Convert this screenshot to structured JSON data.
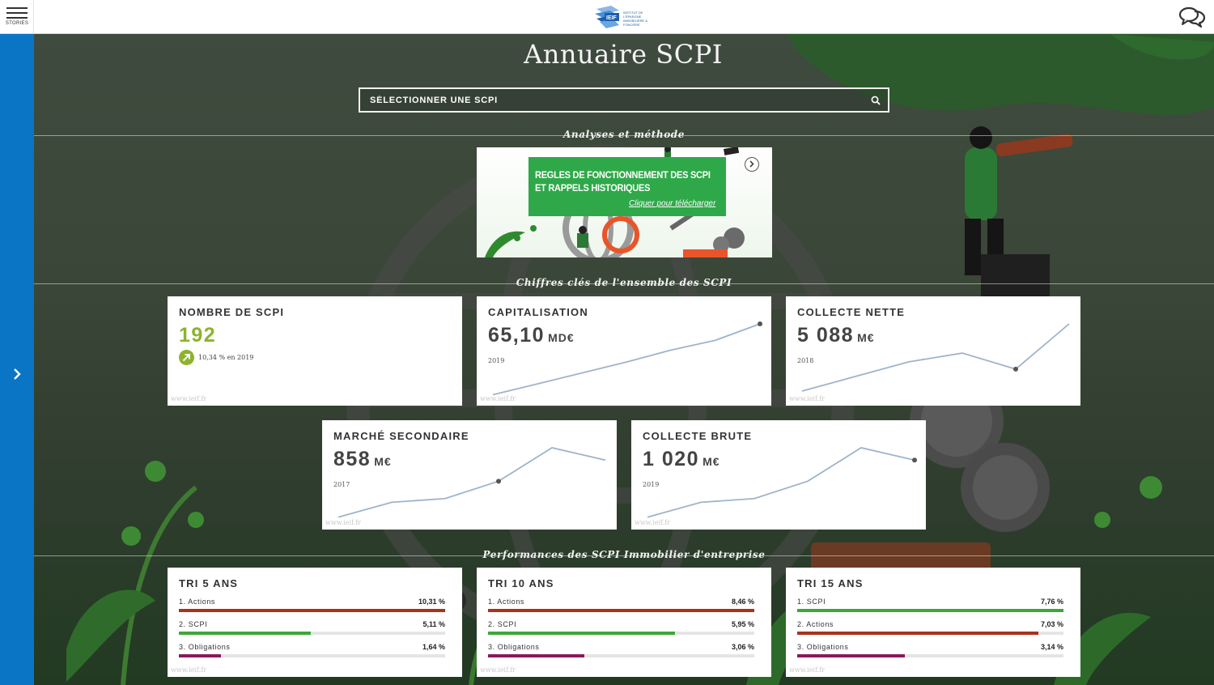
{
  "topbar": {
    "menu_label": "STORIES",
    "logo_text": "IEIF",
    "logo_subtext": "INSTITUT DE L'ÉPARGNE IMMOBILIÈRE & FONCIÈRE"
  },
  "page": {
    "title": "Annuaire SCPI"
  },
  "search": {
    "placeholder": "SÉLECTIONNER UNE SCPI"
  },
  "sections": {
    "analyses": "Analyses et méthode",
    "chiffres": "Chiffres clés de l'ensemble des SCPI",
    "performances": "Performances des SCPI Immobilier d'entreprise"
  },
  "banner": {
    "line1": "REGLES DE FONCTIONNEMENT DES SCPI",
    "line2": "ET RAPPELS HISTORIQUES",
    "cta": "Cliquer pour télécharger"
  },
  "source_label": "www.ieif.fr",
  "kpis": {
    "nombre": {
      "title": "NOMBRE DE SCPI",
      "value": "192",
      "trend_text": "10,34 % en 2019"
    },
    "capitalisation": {
      "title": "CAPITALISATION",
      "value": "65,10",
      "unit": "MD€",
      "year": "2019",
      "series": [
        1,
        2,
        3,
        4,
        5.1,
        6,
        7.5
      ]
    },
    "collecte_nette": {
      "title": "COLLECTE NETTE",
      "value": "5 088",
      "unit": "M€",
      "year": "2018",
      "series": [
        1,
        2,
        3,
        3.6,
        2.5,
        5.6
      ]
    },
    "marche_secondaire": {
      "title": "MARCHÉ SECONDAIRE",
      "value": "858",
      "unit": "M€",
      "year": "2017",
      "series": [
        1,
        2.2,
        2.5,
        3.9,
        6.6,
        5.6
      ]
    },
    "collecte_brute": {
      "title": "COLLECTE BRUTE",
      "value": "1 020",
      "unit": "M€",
      "year": "2019",
      "series": [
        1,
        2.2,
        2.5,
        3.9,
        6.6,
        5.6
      ]
    }
  },
  "tri": [
    {
      "title": "TRI 5 ANS",
      "rows": [
        {
          "label": "1. Actions",
          "value": "10,31 %",
          "pct": 10.31,
          "color": "#a9321c"
        },
        {
          "label": "2. SCPI",
          "value": "5,11 %",
          "pct": 5.11,
          "color": "#3ca83a"
        },
        {
          "label": "3. Obligations",
          "value": "1,64 %",
          "pct": 1.64,
          "color": "#8a1a5c"
        }
      ],
      "max": 10.31
    },
    {
      "title": "TRI 10 ANS",
      "rows": [
        {
          "label": "1. Actions",
          "value": "8,46 %",
          "pct": 8.46,
          "color": "#a9321c"
        },
        {
          "label": "2. SCPI",
          "value": "5,95 %",
          "pct": 5.95,
          "color": "#3ca83a"
        },
        {
          "label": "3. Obligations",
          "value": "3,06 %",
          "pct": 3.06,
          "color": "#8a1a5c"
        }
      ],
      "max": 8.46
    },
    {
      "title": "TRI 15 ANS",
      "rows": [
        {
          "label": "1. SCPI",
          "value": "7,76 %",
          "pct": 7.76,
          "color": "#3ca83a"
        },
        {
          "label": "2. Actions",
          "value": "7,03 %",
          "pct": 7.03,
          "color": "#a9321c"
        },
        {
          "label": "3. Obligations",
          "value": "3,14 %",
          "pct": 3.14,
          "color": "#8a1a5c"
        }
      ],
      "max": 7.76
    }
  ],
  "colors": {
    "rail": "#0a75c5",
    "accent_green": "#8db32c",
    "sparkline": "#9fb4c9"
  }
}
